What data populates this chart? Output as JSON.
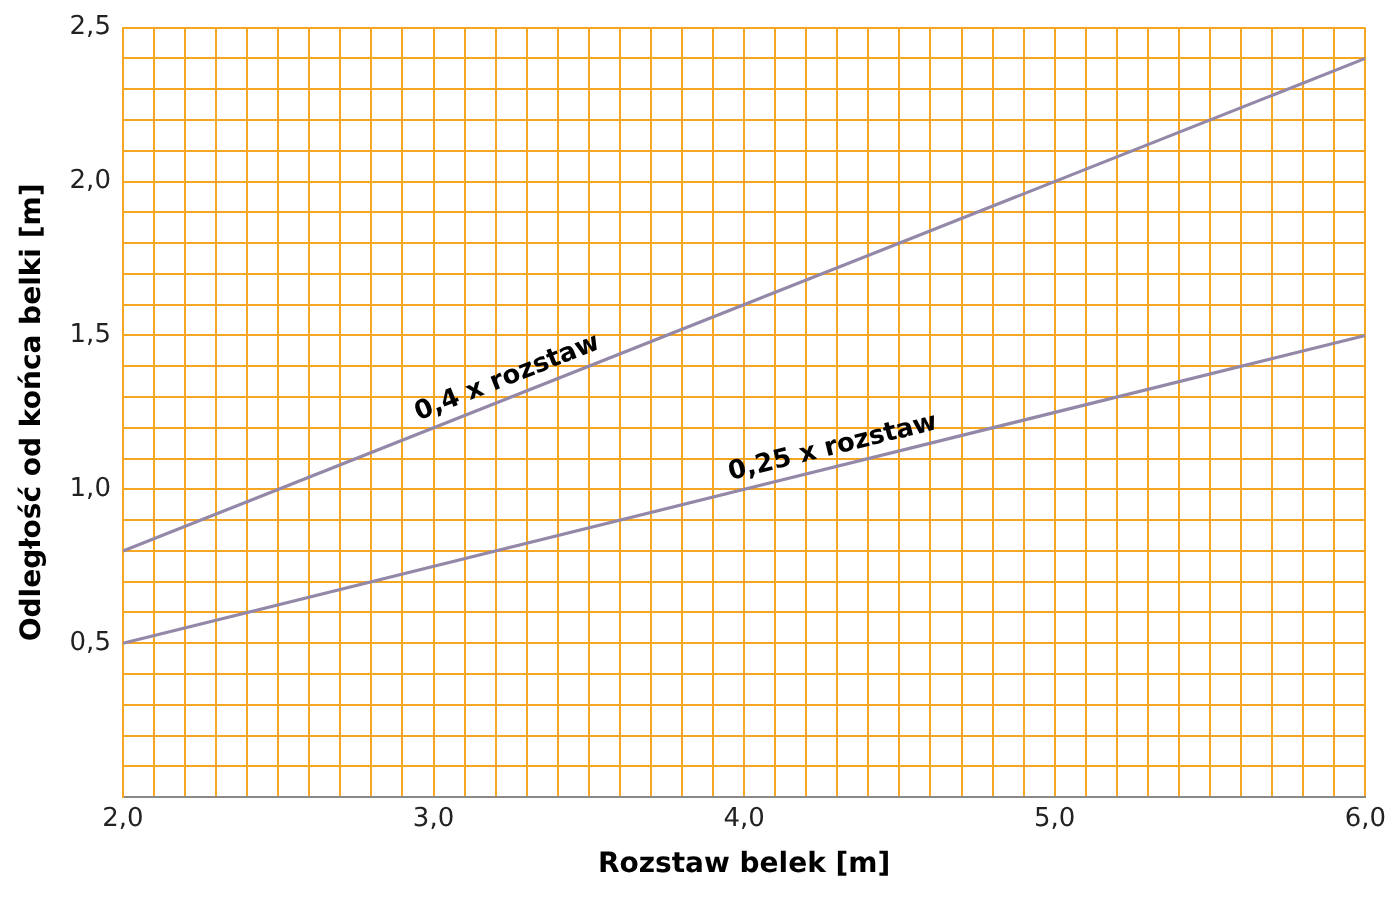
{
  "chart_data": {
    "type": "line",
    "xlabel": "Rozstaw belek [m]",
    "ylabel": "Odległość od końca belki [m]",
    "x": [
      2.0,
      6.0
    ],
    "series": [
      {
        "color": "#9488a8",
        "values": [
          0.8,
          2.4
        ]
      },
      {
        "color": "#9488a8",
        "values": [
          0.5,
          1.5
        ]
      }
    ],
    "xlim": [
      2.0,
      6.0
    ],
    "ylim": [
      0,
      2.5
    ],
    "xticks": [
      {
        "value": 2.0,
        "label": "2,0"
      },
      {
        "value": 2.1,
        "label": null
      },
      {
        "value": 2.2,
        "label": null
      },
      {
        "value": 2.3,
        "label": null
      },
      {
        "value": 2.4,
        "label": null
      },
      {
        "value": 2.5,
        "label": null
      },
      {
        "value": 2.6,
        "label": null
      },
      {
        "value": 2.7,
        "label": null
      },
      {
        "value": 2.8,
        "label": null
      },
      {
        "value": 2.9,
        "label": null
      },
      {
        "value": 3.0,
        "label": "3,0"
      },
      {
        "value": 3.1,
        "label": null
      },
      {
        "value": 3.2,
        "label": null
      },
      {
        "value": 3.3,
        "label": null
      },
      {
        "value": 3.4,
        "label": null
      },
      {
        "value": 3.5,
        "label": null
      },
      {
        "value": 3.6,
        "label": null
      },
      {
        "value": 3.7,
        "label": null
      },
      {
        "value": 3.8,
        "label": null
      },
      {
        "value": 3.9,
        "label": null
      },
      {
        "value": 4.0,
        "label": "4,0"
      },
      {
        "value": 4.1,
        "label": null
      },
      {
        "value": 4.2,
        "label": null
      },
      {
        "value": 4.3,
        "label": null
      },
      {
        "value": 4.4,
        "label": null
      },
      {
        "value": 4.5,
        "label": null
      },
      {
        "value": 4.6,
        "label": null
      },
      {
        "value": 4.7,
        "label": null
      },
      {
        "value": 4.8,
        "label": null
      },
      {
        "value": 4.9,
        "label": null
      },
      {
        "value": 5.0,
        "label": "5,0"
      },
      {
        "value": 5.1,
        "label": null
      },
      {
        "value": 5.2,
        "label": null
      },
      {
        "value": 5.3,
        "label": null
      },
      {
        "value": 5.4,
        "label": null
      },
      {
        "value": 5.5,
        "label": null
      },
      {
        "value": 5.6,
        "label": null
      },
      {
        "value": 5.7,
        "label": null
      },
      {
        "value": 5.8,
        "label": null
      },
      {
        "value": 5.9,
        "label": null
      },
      {
        "value": 6.0,
        "label": "6,0"
      }
    ],
    "yticks": [
      {
        "value": 0,
        "label": null
      },
      {
        "value": 0.1,
        "label": null
      },
      {
        "value": 0.2,
        "label": null
      },
      {
        "value": 0.3,
        "label": null
      },
      {
        "value": 0.4,
        "label": null
      },
      {
        "value": 0.5,
        "label": "0,5"
      },
      {
        "value": 0.6,
        "label": null
      },
      {
        "value": 0.7,
        "label": null
      },
      {
        "value": 0.8,
        "label": null
      },
      {
        "value": 0.9,
        "label": null
      },
      {
        "value": 1.0,
        "label": "1,0"
      },
      {
        "value": 1.1,
        "label": null
      },
      {
        "value": 1.2,
        "label": null
      },
      {
        "value": 1.3,
        "label": null
      },
      {
        "value": 1.4,
        "label": null
      },
      {
        "value": 1.5,
        "label": "1,5"
      },
      {
        "value": 1.6,
        "label": null
      },
      {
        "value": 1.7,
        "label": null
      },
      {
        "value": 1.8,
        "label": null
      },
      {
        "value": 1.9,
        "label": null
      },
      {
        "value": 2.0,
        "label": "2,0"
      },
      {
        "value": 2.1,
        "label": null
      },
      {
        "value": 2.2,
        "label": null
      },
      {
        "value": 2.3,
        "label": null
      },
      {
        "value": 2.4,
        "label": null
      },
      {
        "value": 2.5,
        "label": "2,5"
      }
    ],
    "grid": true,
    "legend": false,
    "marker": "none",
    "line_style": "solid",
    "annotations": [
      {
        "text": "0,4 x rozstaw",
        "x": 3.26,
        "y": 1.304
      },
      {
        "text": "0,25 x rozstaw",
        "x": 4.3,
        "y": 1.075
      }
    ]
  }
}
